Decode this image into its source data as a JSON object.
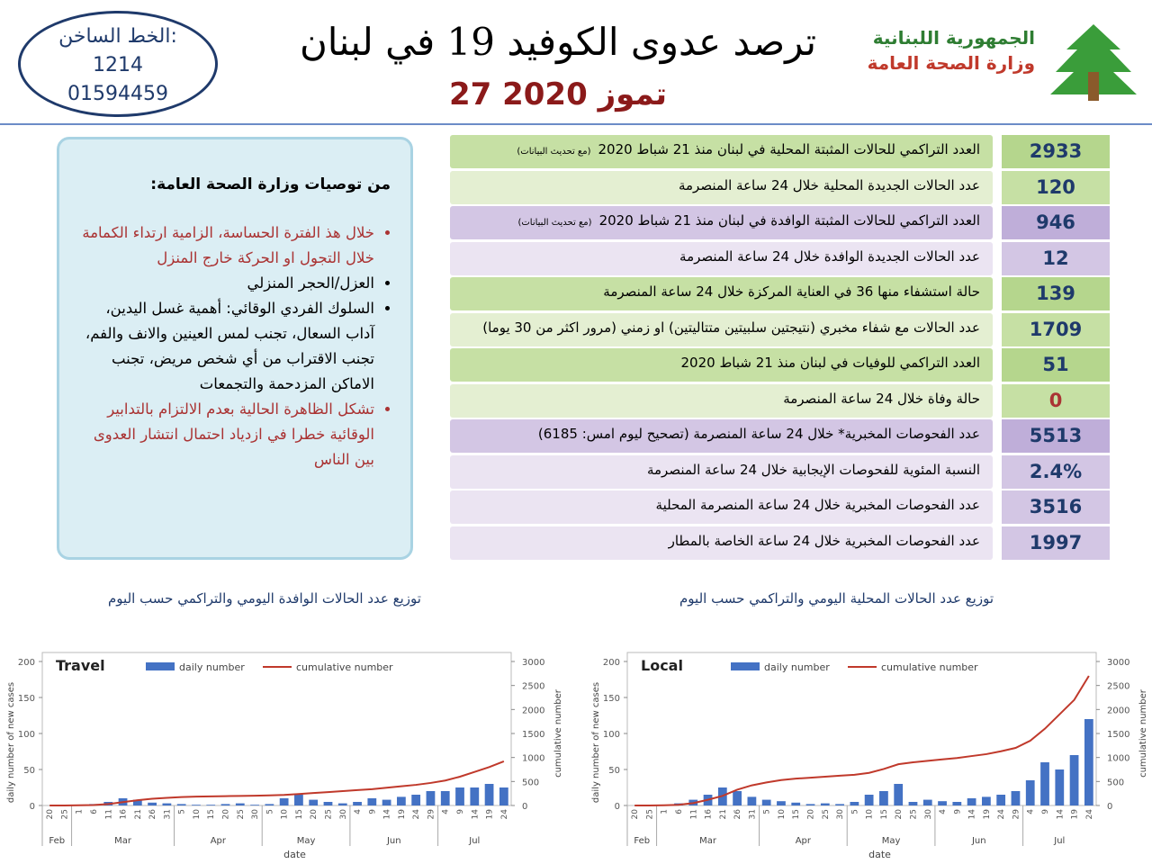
{
  "header": {
    "hotline_label": "الخط الساخن:",
    "hotline_1": "1214",
    "hotline_2": "01594459",
    "title": "ترصد عدوى الكوفيد 19 في لبنان",
    "date": "27 تموز 2020",
    "republic": "الجمهورية اللبنانية",
    "ministry": "وزارة الصحة العامة"
  },
  "recommendations": {
    "heading": "من توصيات وزارة الصحة العامة:",
    "items": [
      "خلال هذ الفترة الحساسة، الزامية ارتداء الكمامة خلال التجول او الحركة خارج المنزل",
      "العزل/الحجر المنزلي",
      "السلوك الفردي الوقائي: أهمية غسل اليدين، آداب السعال، تجنب لمس العينين والانف والفم، تجنب الاقتراب من أي شخص مريض، تجنب الاماكن المزدحمة والتجمعات",
      "تشكل الظاهرة الحالية بعدم الالتزام بالتدابير الوقائية خطرا في ازدياد احتمال انتشار العدوى بين الناس"
    ]
  },
  "stats": [
    {
      "label": "العدد التراكمي للحالات المثبتة المحلية في لبنان منذ 21 شباط 2020",
      "note": "(مع تحديث البيانات)",
      "value": 2933
    },
    {
      "label": "عدد الحالات الجديدة المحلية خلال 24 ساعة المنصرمة",
      "value": 120
    },
    {
      "label": "العدد التراكمي للحالات المثبتة الوافدة في لبنان منذ 21 شباط 2020",
      "note": "(مع تحديث البيانات)",
      "value": 946
    },
    {
      "label": "عدد الحالات الجديدة الوافدة خلال 24 ساعة المنصرمة",
      "value": 12
    },
    {
      "label": "حالة استشفاء منها 36 في العناية المركزة خلال 24 ساعة المنصرمة",
      "value": 139
    },
    {
      "label": "عدد الحالات مع شفاء مخبري (نتيجتين سلبيتين متتاليتين) او زمني (مرور اكثر من 30 يوما)",
      "value": 1709
    },
    {
      "label": "العدد التراكمي للوفيات في لبنان منذ 21 شباط 2020",
      "value": 51
    },
    {
      "label": "حالة وفاة خلال 24 ساعة المنصرمة",
      "value": 0
    },
    {
      "label": "عدد الفحوصات المخبرية* خلال 24 ساعة المنصرمة (تصحيح ليوم امس: 6185)",
      "value": 5513
    },
    {
      "label": "النسبة المئوية للفحوصات الإيجابية خلال 24 ساعة المنصرمة",
      "value": "2.4%"
    },
    {
      "label": "عدد الفحوصات المخبرية خلال 24 ساعة المنصرمة المحلية",
      "value": 3516
    },
    {
      "label": "عدد الفحوصات المخبرية خلال 24 ساعة الخاصة بالمطار",
      "value": 1997
    }
  ],
  "chart_data": [
    {
      "type": "bar",
      "heading": "توزيع عدد الحالات الوافدة اليومي والتراكمي حسب اليوم",
      "title": "Travel",
      "xlabel": "date",
      "ylabel": "daily number of new cases",
      "y2label": "cumulative number",
      "categories": [
        "20",
        "25",
        "1",
        "6",
        "11",
        "16",
        "21",
        "26",
        "31",
        "5",
        "10",
        "15",
        "20",
        "25",
        "30",
        "5",
        "10",
        "15",
        "20",
        "25",
        "30",
        "4",
        "9",
        "14",
        "19",
        "24",
        "29",
        "4",
        "9",
        "14",
        "19",
        "24"
      ],
      "category_groups": [
        "Feb",
        "Feb",
        "Mar",
        "Mar",
        "Mar",
        "Mar",
        "Mar",
        "Mar",
        "Mar",
        "Apr",
        "Apr",
        "Apr",
        "Apr",
        "Apr",
        "Apr",
        "May",
        "May",
        "May",
        "May",
        "May",
        "May",
        "Jun",
        "Jun",
        "Jun",
        "Jun",
        "Jun",
        "Jun",
        "Jul",
        "Jul",
        "Jul",
        "Jul",
        "Jul"
      ],
      "series": [
        {
          "name": "daily number",
          "color": "#4472c4",
          "values": [
            0,
            0,
            1,
            2,
            5,
            10,
            8,
            4,
            3,
            2,
            1,
            1,
            2,
            3,
            1,
            2,
            10,
            15,
            8,
            5,
            3,
            5,
            10,
            8,
            12,
            15,
            20,
            20,
            25,
            25,
            30,
            25
          ]
        },
        {
          "name": "cumulative number",
          "color": "#c0392b",
          "axis": "y2",
          "values": [
            0,
            0,
            5,
            10,
            30,
            70,
            110,
            140,
            160,
            175,
            185,
            190,
            195,
            200,
            205,
            210,
            220,
            240,
            260,
            280,
            300,
            320,
            340,
            370,
            400,
            430,
            470,
            520,
            600,
            700,
            800,
            920
          ]
        }
      ],
      "ylim": [
        0,
        200
      ],
      "yticks": [
        0,
        50,
        100,
        150,
        200
      ],
      "y2lim": [
        0,
        3000
      ],
      "y2ticks": [
        0,
        500,
        1000,
        1500,
        2000,
        2500,
        3000
      ]
    },
    {
      "type": "bar",
      "heading": "توزيع عدد الحالات المحلية اليومي والتراكمي حسب اليوم",
      "title": "Local",
      "xlabel": "date",
      "ylabel": "daily number of new cases",
      "y2label": "cumulative number",
      "categories": [
        "20",
        "25",
        "1",
        "6",
        "11",
        "16",
        "21",
        "26",
        "31",
        "5",
        "10",
        "15",
        "20",
        "25",
        "30",
        "5",
        "10",
        "15",
        "20",
        "25",
        "30",
        "4",
        "9",
        "14",
        "19",
        "24",
        "29",
        "4",
        "9",
        "14",
        "19",
        "24"
      ],
      "category_groups": [
        "Feb",
        "Feb",
        "Mar",
        "Mar",
        "Mar",
        "Mar",
        "Mar",
        "Mar",
        "Mar",
        "Apr",
        "Apr",
        "Apr",
        "Apr",
        "Apr",
        "Apr",
        "May",
        "May",
        "May",
        "May",
        "May",
        "May",
        "Jun",
        "Jun",
        "Jun",
        "Jun",
        "Jun",
        "Jun",
        "Jul",
        "Jul",
        "Jul",
        "Jul",
        "Jul"
      ],
      "series": [
        {
          "name": "daily number",
          "color": "#4472c4",
          "values": [
            0,
            0,
            1,
            3,
            8,
            15,
            25,
            20,
            12,
            8,
            6,
            4,
            2,
            3,
            2,
            5,
            15,
            20,
            30,
            5,
            8,
            6,
            5,
            10,
            12,
            15,
            20,
            35,
            60,
            50,
            70,
            120
          ]
        },
        {
          "name": "cumulative number",
          "color": "#c0392b",
          "axis": "y2",
          "values": [
            0,
            0,
            5,
            15,
            50,
            120,
            200,
            330,
            420,
            480,
            530,
            560,
            580,
            600,
            620,
            640,
            680,
            760,
            860,
            900,
            930,
            960,
            990,
            1030,
            1070,
            1130,
            1200,
            1350,
            1600,
            1900,
            2200,
            2700
          ]
        }
      ],
      "ylim": [
        0,
        200
      ],
      "yticks": [
        0,
        50,
        100,
        150,
        200
      ],
      "y2lim": [
        0,
        3000
      ],
      "y2ticks": [
        0,
        500,
        1000,
        1500,
        2000,
        2500,
        3000
      ]
    }
  ]
}
